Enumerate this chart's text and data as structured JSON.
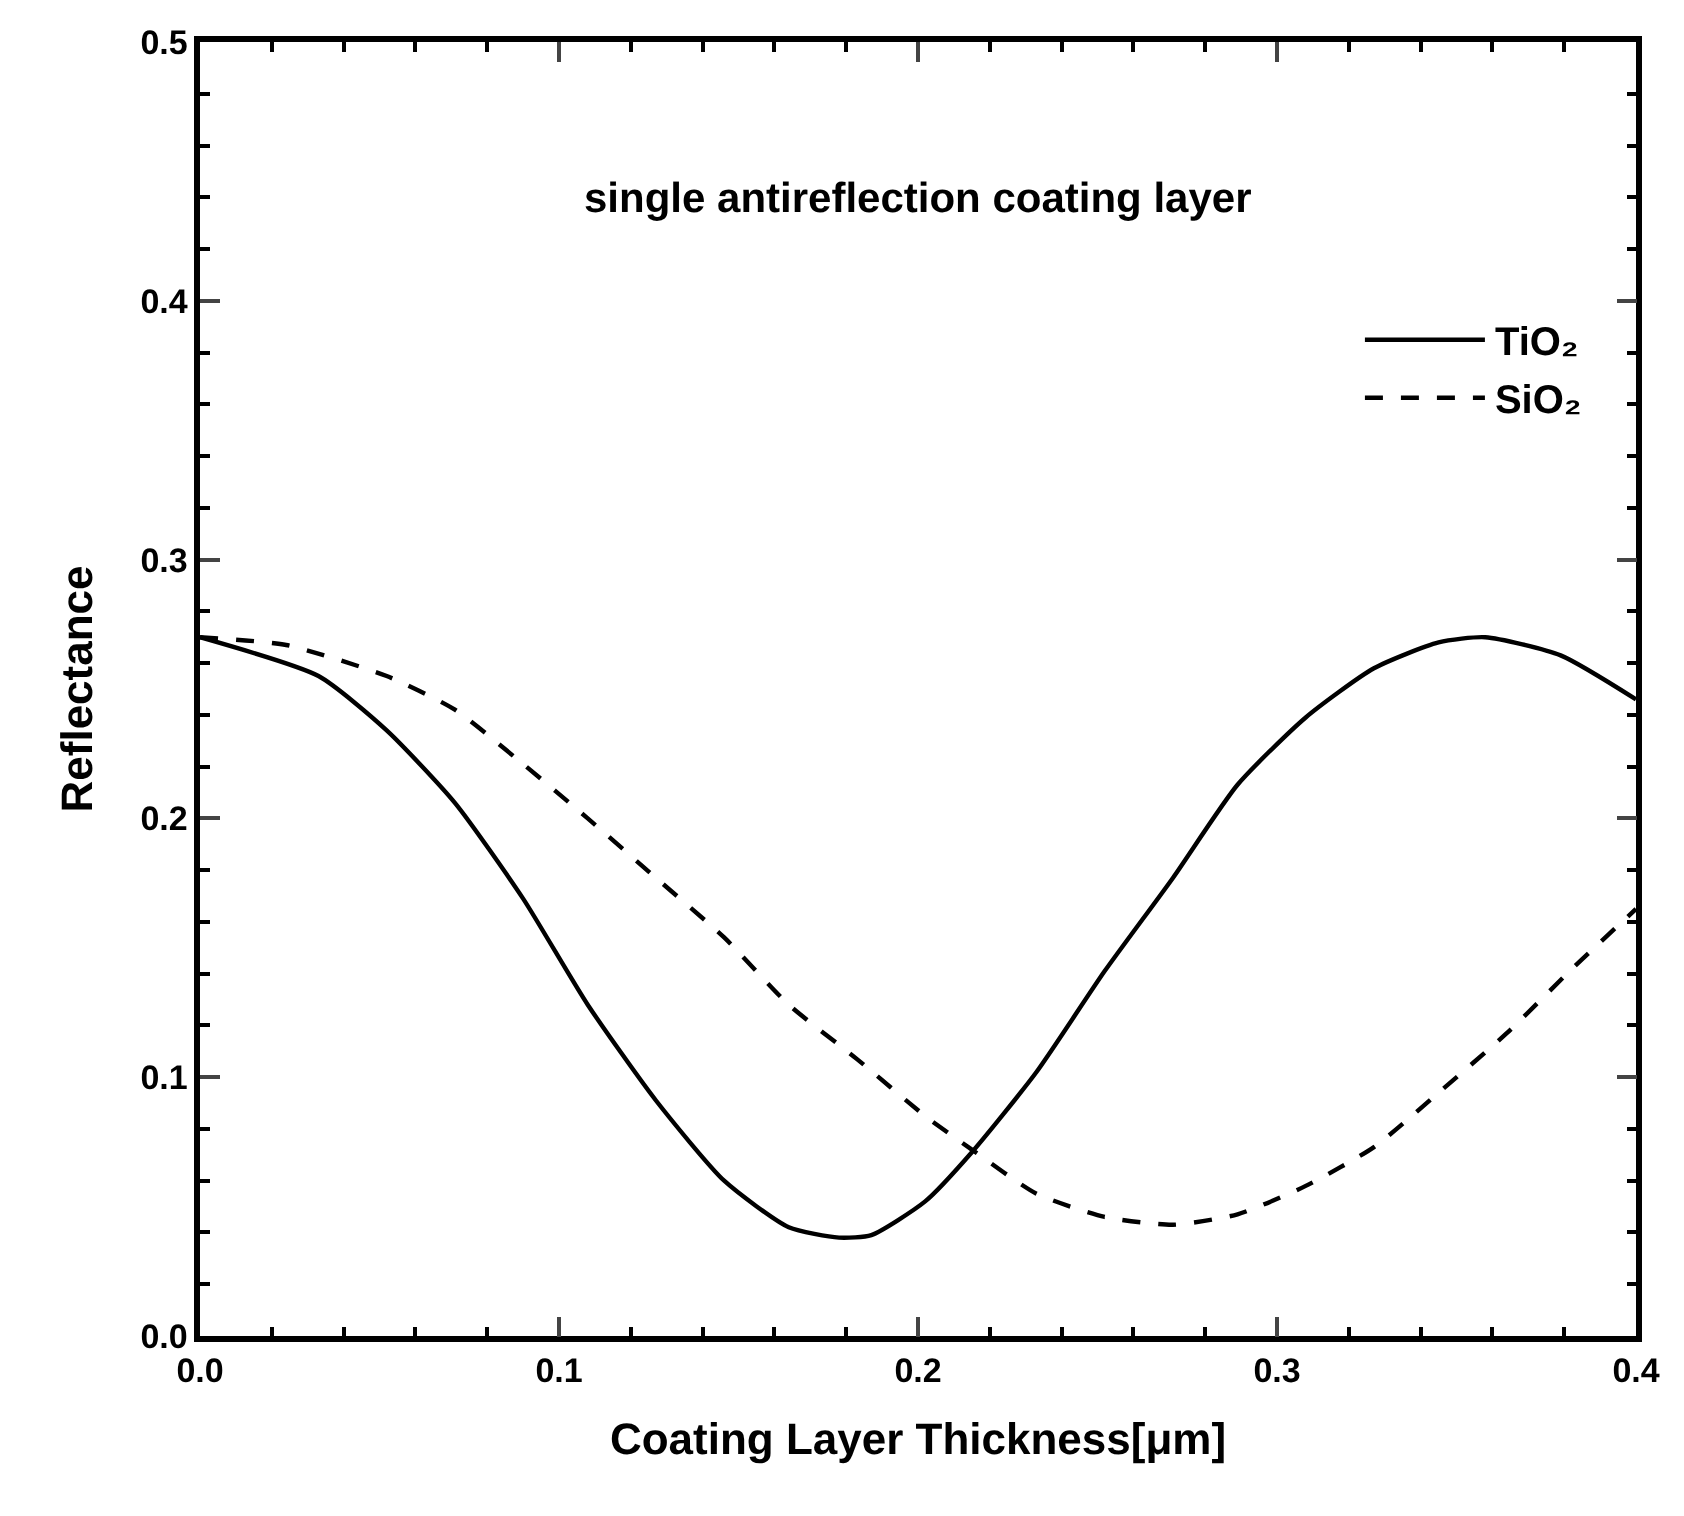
{
  "chart_data": {
    "type": "line",
    "title": "single antireflection coating layer",
    "xlabel": "Coating Layer Thickness[μm]",
    "ylabel": "Reflectance",
    "xlim": [
      0,
      0.4
    ],
    "ylim": [
      0,
      0.5
    ],
    "xticks": [
      {
        "value": 0,
        "label": "0.0"
      },
      {
        "value": 0.02,
        "label": null
      },
      0.1,
      {
        "value": 0.04,
        "label": null
      },
      {
        "value": 0.06,
        "label": null
      },
      {
        "value": 0.08,
        "label": null
      },
      {
        "value": 0.12,
        "label": null
      },
      {
        "value": 0.14,
        "label": null
      },
      {
        "value": 0.16,
        "label": null
      },
      {
        "value": 0.18,
        "label": null
      },
      0.2,
      {
        "value": 0.22,
        "label": null
      },
      {
        "value": 0.24,
        "label": null
      },
      {
        "value": 0.26,
        "label": null
      },
      {
        "value": 0.28,
        "label": null
      },
      0.3,
      {
        "value": 0.32,
        "label": null
      },
      {
        "value": 0.34,
        "label": null
      },
      {
        "value": 0.36,
        "label": null
      },
      {
        "value": 0.38,
        "label": null
      },
      0.4
    ],
    "yticks": [
      {
        "value": 0,
        "label": "0.0"
      },
      {
        "value": 0.02,
        "label": null
      },
      {
        "value": 0.04,
        "label": null
      },
      {
        "value": 0.06,
        "label": null
      },
      {
        "value": 0.08,
        "label": null
      },
      0.1,
      {
        "value": 0.12,
        "label": null
      },
      {
        "value": 0.14,
        "label": null
      },
      {
        "value": 0.16,
        "label": null
      },
      {
        "value": 0.18,
        "label": null
      },
      0.2,
      {
        "value": 0.22,
        "label": null
      },
      {
        "value": 0.24,
        "label": null
      },
      {
        "value": 0.26,
        "label": null
      },
      {
        "value": 0.28,
        "label": null
      },
      0.3,
      {
        "value": 0.32,
        "label": null
      },
      {
        "value": 0.34,
        "label": null
      },
      {
        "value": 0.36,
        "label": null
      },
      {
        "value": 0.38,
        "label": null
      },
      0.4,
      {
        "value": 0.42,
        "label": null
      },
      {
        "value": 0.44,
        "label": null
      },
      {
        "value": 0.46,
        "label": null
      },
      {
        "value": 0.48,
        "label": null
      },
      0.5
    ],
    "legend": "top right",
    "marker": "none",
    "series": [
      {
        "name": "TiO₂",
        "color": "#000000",
        "line_style": "solid",
        "x": [
          0,
          0.033,
          0.052,
          0.071,
          0.09,
          0.108,
          0.127,
          0.146,
          0.164,
          0.178,
          0.187,
          0.202,
          0.215,
          0.233,
          0.252,
          0.271,
          0.289,
          0.308,
          0.327,
          0.345,
          0.358,
          0.379,
          0.4
        ],
        "values": [
          0.27,
          0.255,
          0.234,
          0.206,
          0.169,
          0.128,
          0.091,
          0.06,
          0.042,
          0.038,
          0.039,
          0.052,
          0.071,
          0.102,
          0.141,
          0.177,
          0.213,
          0.239,
          0.258,
          0.268,
          0.27,
          0.263,
          0.246
        ]
      },
      {
        "name": "SiO₂",
        "color": "#000000",
        "line_style": "dashed",
        "x": [
          0,
          0.024,
          0.052,
          0.071,
          0.09,
          0.108,
          0.127,
          0.146,
          0.164,
          0.183,
          0.202,
          0.215,
          0.233,
          0.252,
          0.271,
          0.289,
          0.308,
          0.327,
          0.345,
          0.364,
          0.383,
          0.4
        ],
        "values": [
          0.27,
          0.267,
          0.255,
          0.242,
          0.221,
          0.2,
          0.177,
          0.154,
          0.128,
          0.107,
          0.085,
          0.072,
          0.055,
          0.046,
          0.043,
          0.047,
          0.058,
          0.073,
          0.094,
          0.117,
          0.143,
          0.165
        ]
      }
    ]
  }
}
